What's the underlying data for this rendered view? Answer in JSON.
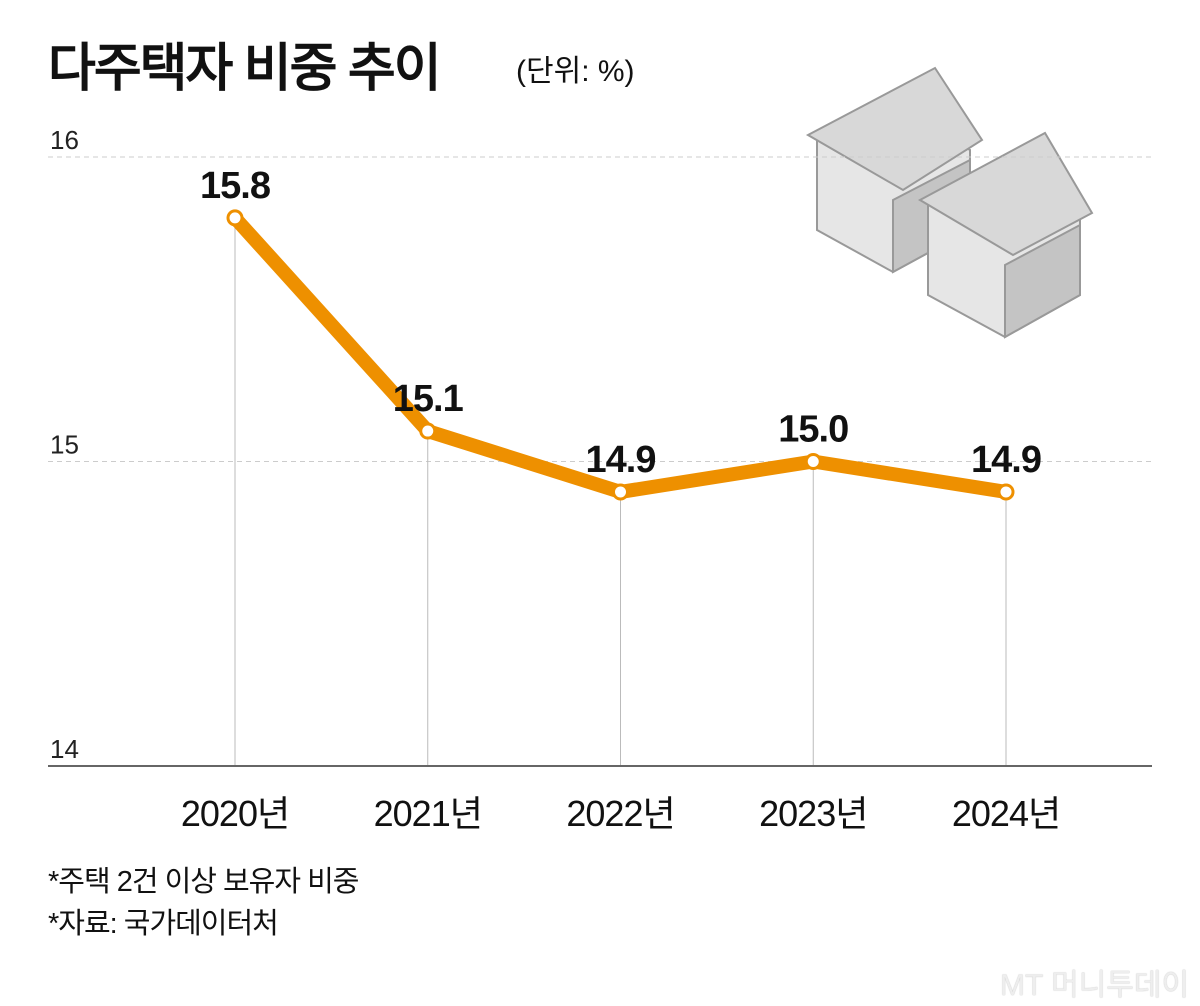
{
  "title": "다주택자 비중 추이",
  "unit": "(단위: %)",
  "notes": [
    "*주택 2건 이상 보유자 비중",
    "*자료: 국가데이터처"
  ],
  "watermark": "MT 머니투데이",
  "colors": {
    "line": "#EE9000",
    "grid": "#cccccc",
    "axis": "#666666"
  },
  "chart_data": {
    "type": "line",
    "title": "다주택자 비중 추이",
    "ylabel": "%",
    "categories": [
      "2020년",
      "2021년",
      "2022년",
      "2023년",
      "2024년"
    ],
    "values": [
      15.8,
      15.1,
      14.9,
      15.0,
      14.9
    ],
    "value_labels": [
      "15.8",
      "15.1",
      "14.9",
      "15.0",
      "14.9"
    ],
    "ylim": [
      14,
      16
    ],
    "yticks": [
      "14",
      "15",
      "16"
    ],
    "grid": true,
    "legend": "none"
  }
}
